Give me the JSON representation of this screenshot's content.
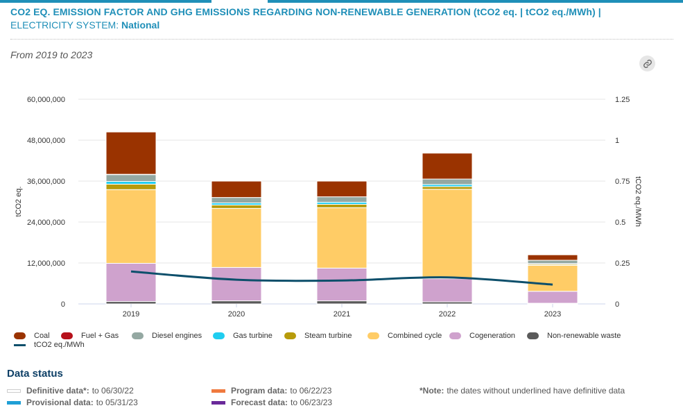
{
  "header": {
    "title": "CO2 EQ. EMISSION FACTOR AND GHG EMISSIONS REGARDING NON-RENEWABLE GENERATION (tCO2 eq. | tCO2 eq./MWh) |",
    "system_label": "ELECTRICITY SYSTEM:",
    "system_value": "National",
    "date_range": "From 2019 to 2023",
    "link_icon": "link-icon"
  },
  "chart_data": {
    "type": "bar",
    "stacked": true,
    "categories": [
      "2019",
      "2020",
      "2021",
      "2022",
      "2023"
    ],
    "title": "CO2 EQ. EMISSION FACTOR AND GHG EMISSIONS REGARDING NON-RENEWABLE GENERATION",
    "xlabel": "",
    "ylabel": "tCO2 eq.",
    "y2label": "tCO2 eq./MWh",
    "ylim": [
      0,
      60000000
    ],
    "y2lim": [
      0,
      1.25
    ],
    "yticks": [
      "0",
      "12,000,000",
      "24,000,000",
      "36,000,000",
      "48,000,000",
      "60,000,000"
    ],
    "ytick_values": [
      0,
      12000000,
      24000000,
      36000000,
      48000000,
      60000000
    ],
    "y2ticks": [
      "0",
      "0.25",
      "0.5",
      "0.75",
      "1",
      "1.25"
    ],
    "y2tick_values": [
      0,
      0.25,
      0.5,
      0.75,
      1,
      1.25
    ],
    "grid": true,
    "legend_position": "bottom",
    "series": [
      {
        "name": "Non-renewable waste",
        "color": "#5a5a5a",
        "values": [
          700000,
          900000,
          900000,
          600000,
          200000
        ]
      },
      {
        "name": "Cogeneration",
        "color": "#cfa2cd",
        "values": [
          11200000,
          9800000,
          9600000,
          6800000,
          3500000
        ]
      },
      {
        "name": "Combined cycle",
        "color": "#ffcc66",
        "values": [
          21600000,
          17300000,
          17700000,
          26200000,
          7600000
        ]
      },
      {
        "name": "Steam turbine",
        "color": "#b79b0b",
        "values": [
          1600000,
          1000000,
          1000000,
          800000,
          300000
        ]
      },
      {
        "name": "Gas turbine",
        "color": "#1fcdf0",
        "values": [
          800000,
          600000,
          600000,
          600000,
          200000
        ]
      },
      {
        "name": "Diesel engines",
        "color": "#94a8a2",
        "values": [
          2000000,
          1600000,
          1600000,
          1600000,
          1000000
        ]
      },
      {
        "name": "Fuel + Gas",
        "color": "#b6111b",
        "values": [
          100000,
          0,
          0,
          0,
          0
        ]
      },
      {
        "name": "Coal",
        "color": "#9a3300",
        "values": [
          12400000,
          4800000,
          4600000,
          7600000,
          1600000
        ]
      }
    ],
    "line_series": {
      "name": "tCO2 eq./MWh",
      "color": "#0d4f6b",
      "axis": "right",
      "values": [
        0.198,
        0.148,
        0.143,
        0.162,
        0.118
      ]
    }
  },
  "legend": {
    "items": [
      {
        "label": "Coal",
        "color": "#9a3300",
        "kind": "bar"
      },
      {
        "label": "Fuel + Gas",
        "color": "#b6111b",
        "kind": "bar"
      },
      {
        "label": "Diesel engines",
        "color": "#94a8a2",
        "kind": "bar"
      },
      {
        "label": "Gas turbine",
        "color": "#1fcdf0",
        "kind": "bar"
      },
      {
        "label": "Steam turbine",
        "color": "#b79b0b",
        "kind": "bar"
      },
      {
        "label": "Combined cycle",
        "color": "#ffcc66",
        "kind": "bar"
      },
      {
        "label": "Cogeneration",
        "color": "#cfa2cd",
        "kind": "bar"
      },
      {
        "label": "Non-renewable waste",
        "color": "#5a5a5a",
        "kind": "bar"
      },
      {
        "label": "tCO2 eq./MWh",
        "color": "#0d4f6b",
        "kind": "line"
      }
    ]
  },
  "data_status": {
    "title": "Data status",
    "items": [
      {
        "label": "Definitive data*:",
        "value": "to 06/30/22",
        "color": "#ffffff"
      },
      {
        "label": "Provisional data:",
        "value": "to 05/31/23",
        "color": "#1f9fd6"
      },
      {
        "label": "Program data:",
        "value": "to 06/22/23",
        "color": "#f07a3f"
      },
      {
        "label": "Forecast data:",
        "value": "to 06/23/23",
        "color": "#6a2a9a"
      }
    ],
    "note_label": "*Note:",
    "note_text": "the dates without underlined have definitive data"
  }
}
